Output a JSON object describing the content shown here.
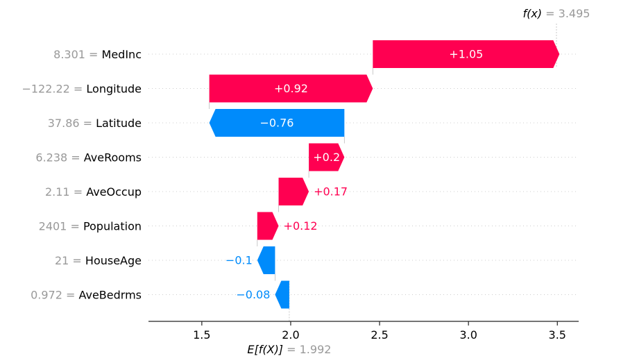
{
  "chart_data": {
    "type": "waterfall",
    "base_value": 1.992,
    "base_value_text": "1.992",
    "base_label_prefix": "E[f(X)]",
    "output_value": 3.495,
    "output_value_text": "3.495",
    "output_label_prefix": "f(x)",
    "xlim": [
      1.2,
      3.62
    ],
    "xticks": [
      1.5,
      2.0,
      2.5,
      3.0,
      3.5
    ],
    "xtick_labels": [
      "1.5",
      "2.0",
      "2.5",
      "3.0",
      "3.5"
    ],
    "features": [
      {
        "value_text": "8.301",
        "name": "MedInc",
        "contribution": 1.05,
        "label": "+1.05"
      },
      {
        "value_text": "−122.22",
        "name": "Longitude",
        "contribution": 0.92,
        "label": "+0.92"
      },
      {
        "value_text": "37.86",
        "name": "Latitude",
        "contribution": -0.76,
        "label": "−0.76"
      },
      {
        "value_text": "6.238",
        "name": "AveRooms",
        "contribution": 0.2,
        "label": "+0.2"
      },
      {
        "value_text": "2.11",
        "name": "AveOccup",
        "contribution": 0.17,
        "label": "+0.17"
      },
      {
        "value_text": "2401",
        "name": "Population",
        "contribution": 0.12,
        "label": "+0.12"
      },
      {
        "value_text": "21",
        "name": "HouseAge",
        "contribution": -0.1,
        "label": "−0.1"
      },
      {
        "value_text": "0.972",
        "name": "AveBedrms",
        "contribution": -0.08,
        "label": "−0.08"
      }
    ],
    "colors": {
      "positive": "#ff0051",
      "negative": "#008bfb",
      "label_inside": "#ffffff",
      "muted": "#999999"
    }
  }
}
